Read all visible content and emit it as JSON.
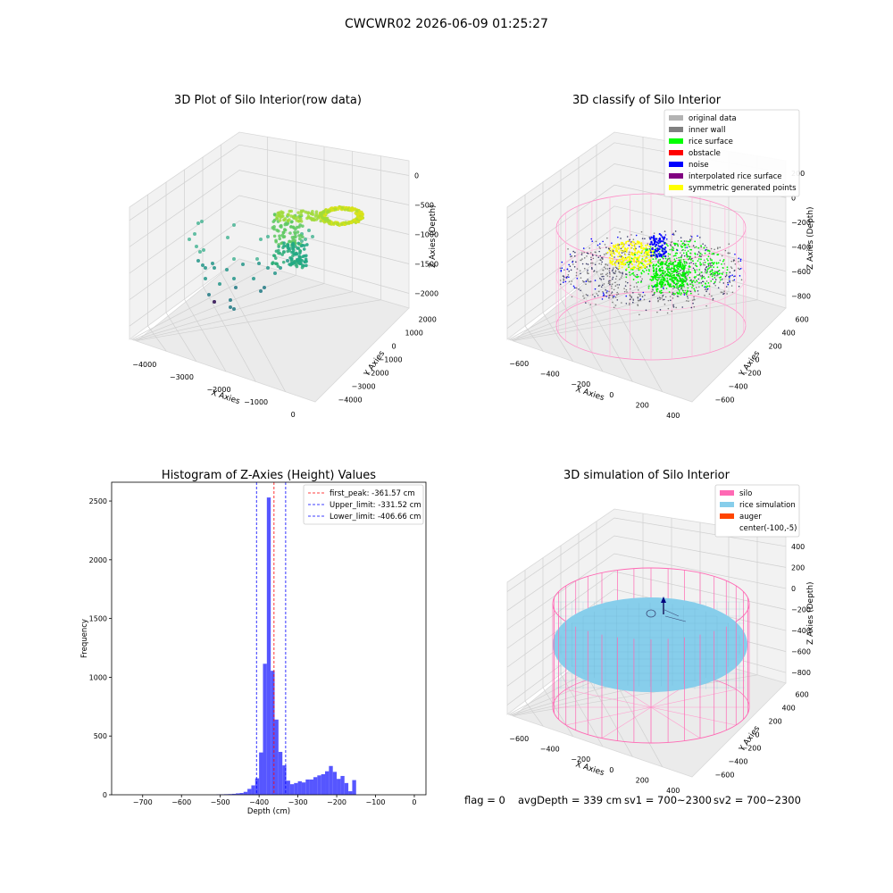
{
  "suptitle": "CWCWR02 2026-06-09 01:25:27",
  "chart_data": [
    {
      "type": "scatter3d",
      "title": "3D Plot of Silo Interior(row data)",
      "xlabel": "X Axies",
      "ylabel": "Y Axies",
      "zlabel": "Z Axies (Depth)",
      "xticks": [
        "−4000",
        "−3000",
        "−2000",
        "−1000",
        "0"
      ],
      "yticks": [
        "2000",
        "1000",
        "0",
        "−1000",
        "−2000",
        "−3000",
        "−4000"
      ],
      "zticks": [
        "0",
        "−500",
        "−1000",
        "−1500",
        "−2000"
      ]
    },
    {
      "type": "scatter3d",
      "title": "3D classify of Silo Interior",
      "xlabel": "X Axies",
      "ylabel": "Y Axies",
      "zlabel": "Z Axies (Depth)",
      "xticks": [
        "−600",
        "−400",
        "−200",
        "0",
        "200",
        "400"
      ],
      "yticks": [
        "600",
        "400",
        "200",
        "0",
        "−200",
        "−400",
        "−600"
      ],
      "zticks": [
        "200",
        "0",
        "−200",
        "−400",
        "−600",
        "−800"
      ],
      "legend": [
        {
          "label": "original data",
          "color": "#b3b3b3"
        },
        {
          "label": "inner wall",
          "color": "#808080"
        },
        {
          "label": "rice surface",
          "color": "#00ff00"
        },
        {
          "label": "obstacle",
          "color": "#ff0000"
        },
        {
          "label": "noise",
          "color": "#0000ff"
        },
        {
          "label": "interpolated rice surface",
          "color": "#800080"
        },
        {
          "label": "symmetric generated points",
          "color": "#ffff00"
        }
      ]
    },
    {
      "type": "bar",
      "title": "Histogram of Z-Axies (Height) Values",
      "xlabel": "Depth (cm)",
      "ylabel": "Frequency",
      "xlim": [
        -780,
        30
      ],
      "ylim": [
        0,
        2660
      ],
      "xticks": [
        -700,
        -600,
        -500,
        -400,
        -300,
        -200,
        -100,
        0
      ],
      "yticks": [
        0,
        500,
        1000,
        1500,
        2000,
        2500
      ],
      "bin_width": 10,
      "bars": [
        {
          "x": -510,
          "value": 3
        },
        {
          "x": -500,
          "value": 4
        },
        {
          "x": -490,
          "value": 5
        },
        {
          "x": -480,
          "value": 6
        },
        {
          "x": -470,
          "value": 8
        },
        {
          "x": -460,
          "value": 12
        },
        {
          "x": -450,
          "value": 15
        },
        {
          "x": -440,
          "value": 25
        },
        {
          "x": -430,
          "value": 50
        },
        {
          "x": -420,
          "value": 80
        },
        {
          "x": -410,
          "value": 140
        },
        {
          "x": -400,
          "value": 360
        },
        {
          "x": -390,
          "value": 1115
        },
        {
          "x": -380,
          "value": 2530
        },
        {
          "x": -370,
          "value": 1055
        },
        {
          "x": -360,
          "value": 640
        },
        {
          "x": -350,
          "value": 365
        },
        {
          "x": -340,
          "value": 250
        },
        {
          "x": -330,
          "value": 120
        },
        {
          "x": -320,
          "value": 90
        },
        {
          "x": -310,
          "value": 100
        },
        {
          "x": -300,
          "value": 115
        },
        {
          "x": -290,
          "value": 105
        },
        {
          "x": -280,
          "value": 130
        },
        {
          "x": -270,
          "value": 130
        },
        {
          "x": -260,
          "value": 150
        },
        {
          "x": -250,
          "value": 165
        },
        {
          "x": -240,
          "value": 175
        },
        {
          "x": -230,
          "value": 200
        },
        {
          "x": -220,
          "value": 245
        },
        {
          "x": -210,
          "value": 195
        },
        {
          "x": -200,
          "value": 135
        },
        {
          "x": -190,
          "value": 160
        },
        {
          "x": -180,
          "value": 100
        },
        {
          "x": -170,
          "value": 30
        },
        {
          "x": -160,
          "value": 125
        }
      ],
      "vlines": [
        {
          "label": "first_peak: -361.57 cm",
          "x": -361.57,
          "color": "#ff0000"
        },
        {
          "label": "Upper_limit: -331.52 cm",
          "x": -331.52,
          "color": "#0000ff"
        },
        {
          "label": "Lower_limit: -406.66 cm",
          "x": -406.66,
          "color": "#0000ff"
        }
      ],
      "bar_color": "#4d4dff"
    },
    {
      "type": "surface3d",
      "title": "3D simulation of Silo Interior",
      "xlabel": "X Axies",
      "ylabel": "Y Axies",
      "zlabel": "Z Axies (Depth)",
      "xticks": [
        "−600",
        "−400",
        "−200",
        "0",
        "200",
        "400"
      ],
      "yticks": [
        "600",
        "400",
        "200",
        "0",
        "−200",
        "−400",
        "−600"
      ],
      "zticks": [
        "400",
        "200",
        "0",
        "−200",
        "−400",
        "−600",
        "−800"
      ],
      "legend": [
        {
          "label": "silo",
          "color": "#ff69b4"
        },
        {
          "label": "rice simulation",
          "color": "#87ceeb"
        },
        {
          "label": "auger",
          "color": "#ff4500"
        },
        {
          "label": "center(-100,-5)",
          "color": ""
        }
      ]
    }
  ],
  "footer": {
    "flag": "flag = 0",
    "avg": "avgDepth = 339 cm",
    "sv1": "sv1 = 700~2300",
    "sv2": "sv2 = 700~2300"
  }
}
